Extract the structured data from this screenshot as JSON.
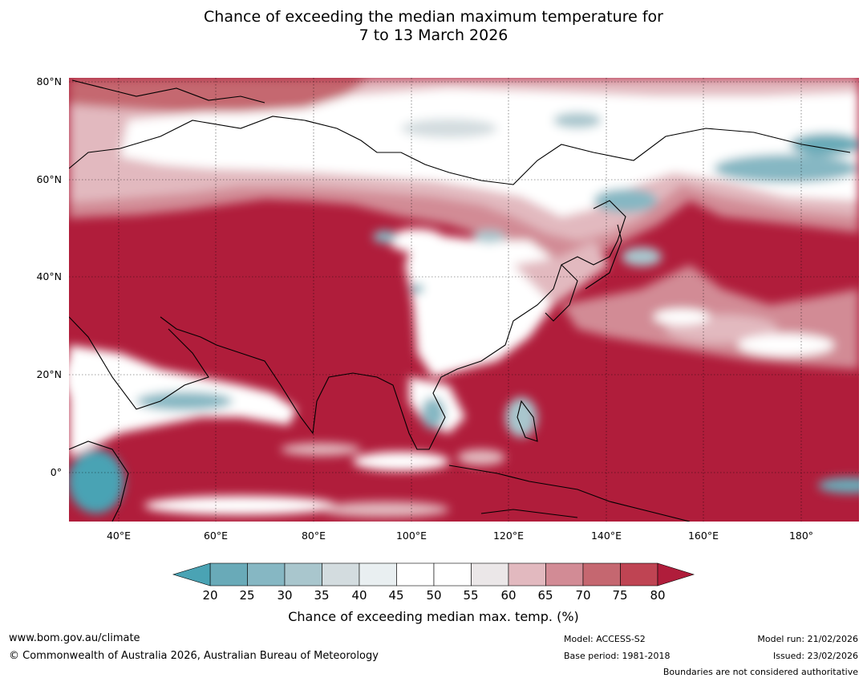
{
  "title": {
    "line1": "Chance of exceeding the median maximum temperature for",
    "line2": "7 to 13 March 2026"
  },
  "map": {
    "lat_labels": [
      "80°N",
      "60°N",
      "40°N",
      "20°N",
      "0°"
    ],
    "lon_labels": [
      "40°E",
      "60°E",
      "80°E",
      "100°E",
      "120°E",
      "140°E",
      "160°E",
      "180°"
    ],
    "lon_range_deg": [
      30,
      191
    ],
    "lat_range_deg": [
      -10,
      81
    ]
  },
  "colorbar": {
    "ticks": [
      "20",
      "25",
      "30",
      "35",
      "40",
      "45",
      "50",
      "55",
      "60",
      "65",
      "70",
      "75",
      "80"
    ],
    "colors": [
      "#69aab8",
      "#86b7c3",
      "#a9c6cd",
      "#d3dcdf",
      "#e9eff1",
      "#ffffff",
      "#ffffff",
      "#ebe7e8",
      "#e2b9bf",
      "#d28b95",
      "#c56770",
      "#bf4453"
    ],
    "under_color": "#4aa3b4",
    "over_color": "#b01d3b",
    "label": "Chance of exceeding median max. temp. (%)"
  },
  "footer": {
    "website": "www.bom.gov.au/climate",
    "copyright": "© Commonwealth of Australia 2026, Australian Bureau of Meteorology",
    "model": "Model: ACCESS-S2",
    "base_period": "Base period: 1981-2018",
    "model_run": "Model run: 21/02/2026",
    "issued": "Issued: 23/02/2026",
    "disclaimer": "Boundaries are not considered authoritative"
  }
}
